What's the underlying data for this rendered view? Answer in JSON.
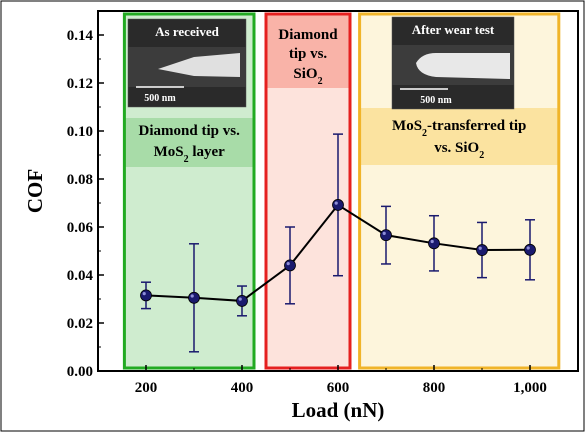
{
  "chart_data": {
    "type": "line",
    "title": "",
    "xlabel": "Load (nN)",
    "ylabel": "COF",
    "xlim": [
      100,
      1100
    ],
    "ylim": [
      0,
      0.15
    ],
    "x_ticks": [
      200,
      400,
      600,
      800,
      1000
    ],
    "x_tick_labels": [
      "200",
      "400",
      "600",
      "800",
      "1,000"
    ],
    "y_ticks": [
      0.0,
      0.02,
      0.04,
      0.06,
      0.08,
      0.1,
      0.12,
      0.14
    ],
    "y_tick_labels": [
      "0.00",
      "0.02",
      "0.04",
      "0.06",
      "0.08",
      "0.10",
      "0.12",
      "0.14"
    ],
    "grid": false,
    "series": [
      {
        "x": [
          200,
          300,
          400,
          500,
          600,
          700,
          800,
          900,
          1000
        ],
        "y": [
          0.0315,
          0.0305,
          0.0292,
          0.044,
          0.0692,
          0.0566,
          0.0532,
          0.0504,
          0.0505
        ],
        "y_err_low": [
          0.0055,
          0.0225,
          0.0062,
          0.016,
          0.0295,
          0.012,
          0.0115,
          0.0115,
          0.0125
        ],
        "y_err_high": [
          0.0055,
          0.0225,
          0.0062,
          0.016,
          0.0295,
          0.012,
          0.0115,
          0.0115,
          0.0125
        ],
        "color": "#1a1a6e",
        "line_color": "#000000"
      }
    ],
    "regions": [
      {
        "x_range": [
          155,
          425
        ],
        "label_lines": [
          "Diamond tip vs.",
          "MoS₂ layer"
        ],
        "fill": "#cfeccf",
        "border": "#22aa22",
        "label_band": "#a8dca8"
      },
      {
        "x_range": [
          450,
          625
        ],
        "label_lines": [
          "Diamond",
          "tip vs.",
          "SiO₂"
        ],
        "fill": "#fde3dc",
        "border": "#e52020",
        "label_band": "#f9b3a8"
      },
      {
        "x_range": [
          645,
          1060
        ],
        "label_lines": [
          "MoS₂-transferred tip",
          "vs. SiO₂"
        ],
        "fill": "#fdf5dc",
        "border": "#f0b429",
        "label_band": "#fbe3a0"
      }
    ],
    "insets": [
      {
        "caption": "As received",
        "scale_bar": "500 nm"
      },
      {
        "caption": "After wear test",
        "scale_bar": "500 nm"
      }
    ]
  }
}
